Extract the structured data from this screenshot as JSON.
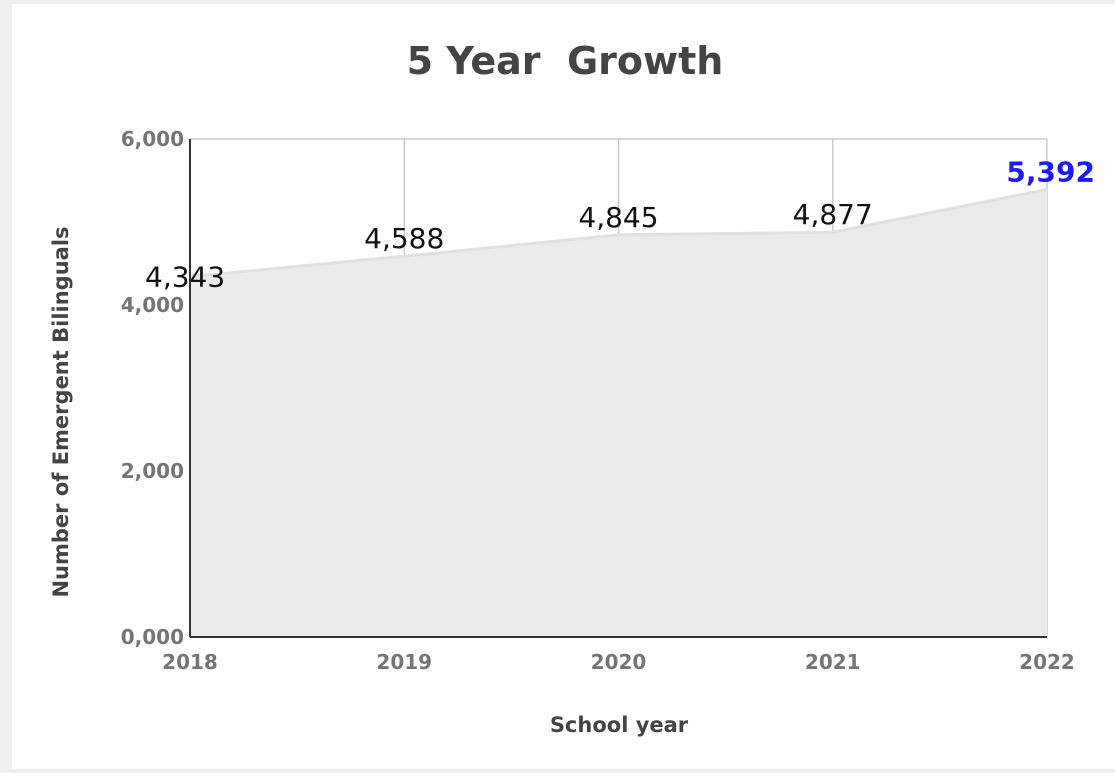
{
  "chart_data": {
    "type": "area",
    "title": "5 Year  Growth",
    "xlabel": "School year",
    "ylabel": "Number of Emergent Bilinguals",
    "x": [
      "2018",
      "2019",
      "2020",
      "2021",
      "2022"
    ],
    "series": [
      {
        "values": [
          4343,
          4588,
          4845,
          4877,
          5392
        ]
      }
    ],
    "data_labels": [
      "4,343",
      "4,588",
      "4,845",
      "4,877",
      "5,392"
    ],
    "highlight_label_index": 4,
    "highlight_color": "#1a1aff",
    "ylim": [
      0,
      6000
    ],
    "yticks": [
      0,
      2000,
      4000,
      6000
    ],
    "ytick_labels": [
      "0,000",
      "2,000",
      "4,000",
      "6,000"
    ],
    "grid": true,
    "legend": "none",
    "area_color": "#ebebeb"
  }
}
